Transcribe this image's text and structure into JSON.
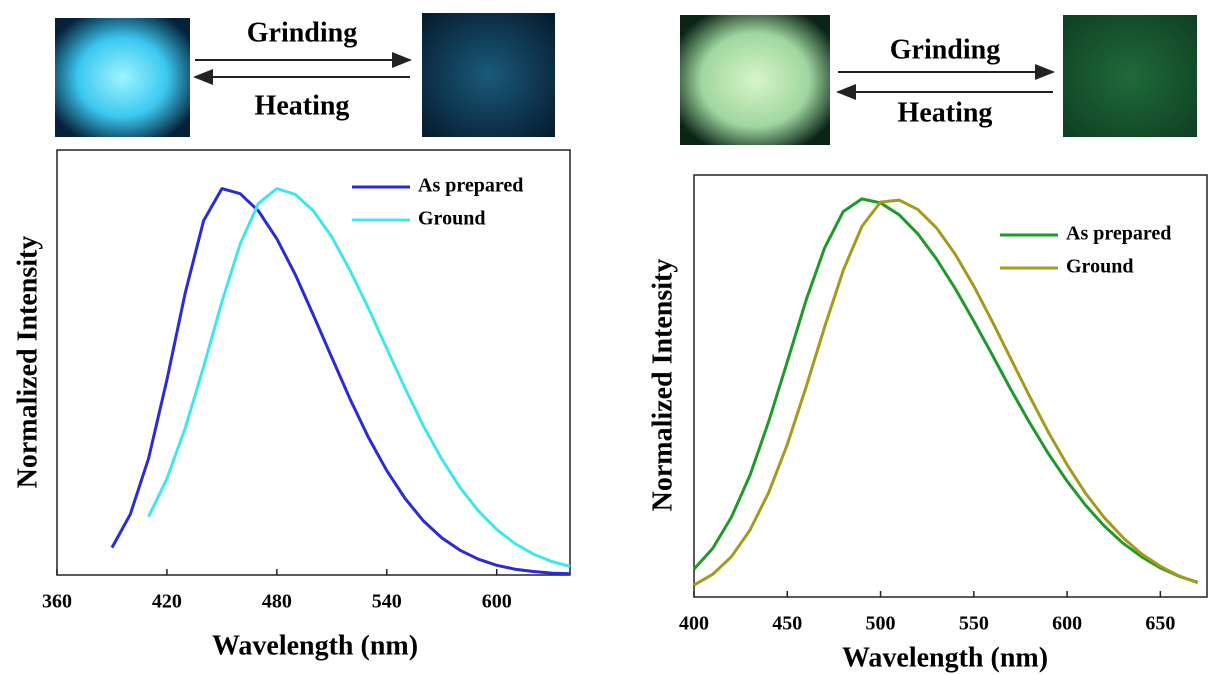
{
  "chart_data": [
    {
      "type": "line",
      "annotations": [
        "Grinding",
        "Heating"
      ],
      "x_label": "Wavelength (nm)",
      "y_label": "Normalized Intensity",
      "x": [
        390,
        400,
        410,
        420,
        430,
        440,
        450,
        460,
        470,
        480,
        490,
        500,
        510,
        520,
        530,
        540,
        550,
        560,
        570,
        580,
        590,
        600,
        610,
        620,
        630,
        640
      ],
      "series": [
        {
          "name": "As prepared",
          "color": "#2b2bd6",
          "values": [
            0.071,
            0.157,
            0.302,
            0.505,
            0.731,
            0.917,
            1.0,
            0.987,
            0.942,
            0.87,
            0.778,
            0.672,
            0.563,
            0.455,
            0.356,
            0.27,
            0.198,
            0.14,
            0.096,
            0.064,
            0.041,
            0.025,
            0.015,
            0.009,
            0.005,
            0.003
          ]
        },
        {
          "name": "Ground",
          "color": "#3fe6ec",
          "values": [
            null,
            null,
            0.151,
            0.249,
            0.381,
            0.539,
            0.707,
            0.857,
            0.962,
            1.0,
            0.985,
            0.942,
            0.875,
            0.788,
            0.69,
            0.586,
            0.483,
            0.386,
            0.3,
            0.226,
            0.166,
            0.118,
            0.081,
            0.054,
            0.035,
            0.022
          ]
        }
      ],
      "xlim": [
        360,
        640
      ],
      "xticks": [
        360,
        420,
        480,
        540,
        600
      ],
      "ylim": [
        0,
        1.1
      ],
      "legend": "upper right"
    },
    {
      "type": "line",
      "annotations": [
        "Grinding",
        "Heating"
      ],
      "x_label": "Wavelength (nm)",
      "y_label": "Normalized Intensity",
      "x": [
        400,
        410,
        420,
        430,
        440,
        450,
        460,
        470,
        480,
        490,
        500,
        510,
        520,
        530,
        540,
        550,
        560,
        570,
        580,
        590,
        600,
        610,
        620,
        630,
        640,
        650,
        660,
        670
      ],
      "series": [
        {
          "name": "As prepared",
          "color": "#1f9a2a",
          "values": [
            0.07,
            0.122,
            0.2,
            0.306,
            0.44,
            0.591,
            0.744,
            0.877,
            0.968,
            1.0,
            0.99,
            0.96,
            0.912,
            0.849,
            0.775,
            0.693,
            0.607,
            0.52,
            0.437,
            0.36,
            0.291,
            0.23,
            0.178,
            0.135,
            0.101,
            0.073,
            0.052,
            0.037
          ]
        },
        {
          "name": "Ground",
          "color": "#a59a1c",
          "values": [
            0.03,
            0.057,
            0.101,
            0.168,
            0.262,
            0.383,
            0.526,
            0.678,
            0.82,
            0.931,
            0.992,
            0.997,
            0.973,
            0.927,
            0.861,
            0.781,
            0.691,
            0.597,
            0.503,
            0.414,
            0.332,
            0.26,
            0.199,
            0.149,
            0.108,
            0.077,
            0.053,
            0.036
          ]
        }
      ],
      "xlim": [
        400,
        675
      ],
      "xticks": [
        400,
        450,
        500,
        550,
        600,
        650
      ],
      "ylim": [
        0,
        1.06
      ],
      "legend": "upper right"
    }
  ]
}
